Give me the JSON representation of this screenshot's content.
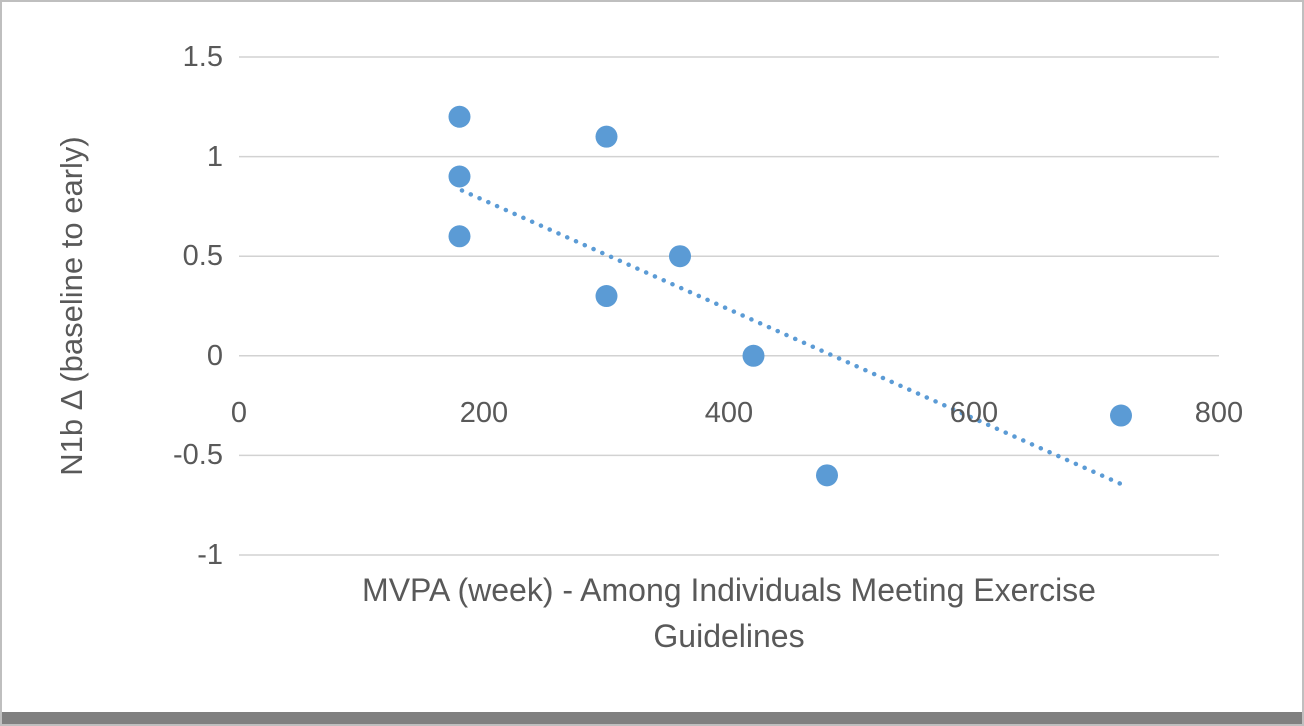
{
  "chart_data": {
    "type": "scatter",
    "title": "",
    "xlabel": "MVPA (week) - Among Individuals Meeting Exercise Guidelines",
    "xlabel_lines": [
      "MVPA (week) - Among Individuals Meeting Exercise",
      "Guidelines"
    ],
    "ylabel": "N1b Δ (baseline to early)",
    "xlim": [
      0,
      800
    ],
    "ylim": [
      -1,
      1.5
    ],
    "x_ticks": [
      0,
      200,
      400,
      600,
      800
    ],
    "y_ticks": [
      1.5,
      1,
      0.5,
      0,
      -0.5,
      -1
    ],
    "grid": true,
    "legend": "none",
    "points": [
      {
        "x": 180,
        "y": 1.2
      },
      {
        "x": 180,
        "y": 0.9
      },
      {
        "x": 180,
        "y": 0.6
      },
      {
        "x": 300,
        "y": 1.1
      },
      {
        "x": 300,
        "y": 0.3
      },
      {
        "x": 360,
        "y": 0.5
      },
      {
        "x": 420,
        "y": 0.0
      },
      {
        "x": 480,
        "y": -0.6
      },
      {
        "x": 720,
        "y": -0.3
      }
    ],
    "trendline": {
      "style": "dotted",
      "x1": 182,
      "y1": 0.83,
      "x2": 726,
      "y2": -0.66
    },
    "colors": {
      "marker": "#5B9BD5",
      "trendline": "#5B9BD5",
      "gridline": "#D2D2D2",
      "text": "#595959",
      "border": "#BFBFBF",
      "bottom_bar": "#808080"
    }
  }
}
